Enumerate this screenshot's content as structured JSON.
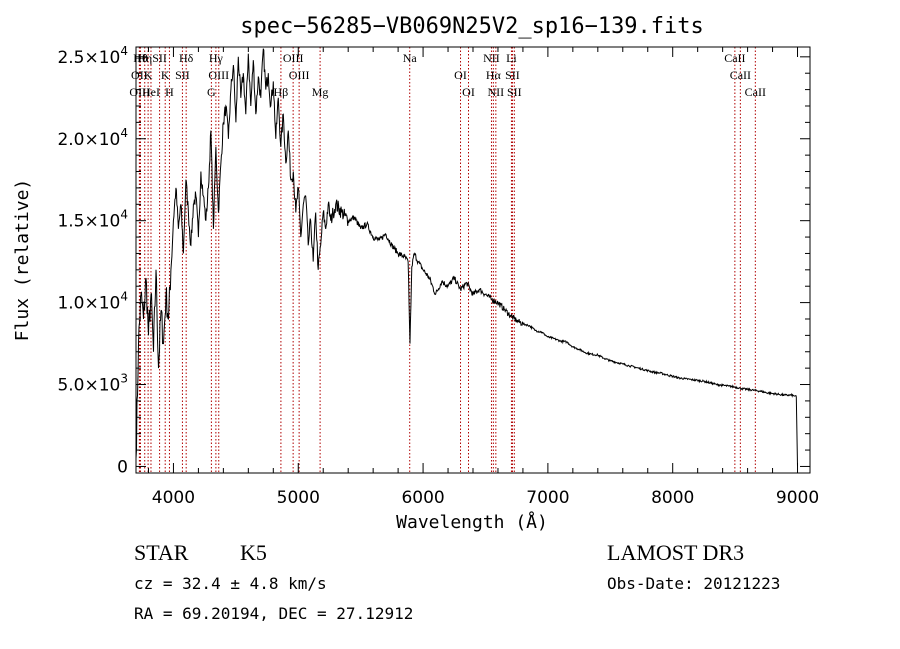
{
  "chart_data": {
    "type": "line",
    "title": "spec−56285−VB069N25V2_sp16−139.fits",
    "xlabel": "Wavelength (Å)",
    "ylabel": "Flux (relative)",
    "xlim": [
      3700,
      9100
    ],
    "ylim": [
      -400,
      25600
    ],
    "x_ticks": [
      {
        "value": 4000,
        "label": "4000"
      },
      {
        "value": 5000,
        "label": "5000"
      },
      {
        "value": 6000,
        "label": "6000"
      },
      {
        "value": 7000,
        "label": "7000"
      },
      {
        "value": 8000,
        "label": "8000"
      },
      {
        "value": 9000,
        "label": "9000"
      }
    ],
    "y_ticks": [
      {
        "value": 0,
        "mantissa": "0",
        "exponent": ""
      },
      {
        "value": 5000,
        "mantissa": "5.0×10",
        "exponent": "3"
      },
      {
        "value": 10000,
        "mantissa": "1.0×10",
        "exponent": "4"
      },
      {
        "value": 15000,
        "mantissa": "1.5×10",
        "exponent": "4"
      },
      {
        "value": 20000,
        "mantissa": "2.0×10",
        "exponent": "4"
      },
      {
        "value": 25000,
        "mantissa": "2.5×10",
        "exponent": "4"
      }
    ],
    "series": [
      {
        "name": "flux",
        "x": [
          3700,
          3720,
          3740,
          3760,
          3780,
          3800,
          3820,
          3840,
          3860,
          3880,
          3900,
          3920,
          3940,
          3960,
          3980,
          4000,
          4020,
          4040,
          4060,
          4080,
          4100,
          4120,
          4140,
          4160,
          4180,
          4200,
          4220,
          4240,
          4260,
          4280,
          4300,
          4320,
          4340,
          4360,
          4380,
          4400,
          4420,
          4440,
          4460,
          4480,
          4500,
          4520,
          4540,
          4560,
          4580,
          4600,
          4620,
          4640,
          4660,
          4680,
          4700,
          4720,
          4740,
          4760,
          4780,
          4800,
          4820,
          4840,
          4860,
          4880,
          4900,
          4920,
          4940,
          4960,
          4980,
          5000,
          5020,
          5040,
          5060,
          5080,
          5100,
          5120,
          5140,
          5160,
          5180,
          5200,
          5220,
          5240,
          5260,
          5280,
          5300,
          5350,
          5400,
          5450,
          5500,
          5550,
          5600,
          5650,
          5700,
          5750,
          5800,
          5850,
          5880,
          5895,
          5910,
          5930,
          5960,
          6000,
          6050,
          6100,
          6150,
          6200,
          6250,
          6300,
          6350,
          6400,
          6450,
          6500,
          6550,
          6600,
          6650,
          6700,
          6750,
          6800,
          6850,
          6900,
          6950,
          7000,
          7050,
          7100,
          7150,
          7200,
          7250,
          7300,
          7350,
          7400,
          7450,
          7500,
          7550,
          7600,
          7650,
          7700,
          7750,
          7800,
          7850,
          7900,
          7950,
          8000,
          8050,
          8100,
          8150,
          8200,
          8250,
          8300,
          8350,
          8400,
          8450,
          8500,
          8550,
          8600,
          8650,
          8700,
          8750,
          8800,
          8850,
          8900,
          8950,
          8980,
          8990,
          9000
        ],
        "y": [
          500,
          7500,
          10500,
          9000,
          11500,
          8000,
          10500,
          7000,
          12000,
          6000,
          9500,
          7500,
          10500,
          9000,
          12000,
          15000,
          17000,
          14500,
          16000,
          13000,
          17500,
          15500,
          13500,
          16000,
          16500,
          14000,
          18000,
          16500,
          15000,
          17000,
          20500,
          14500,
          19500,
          15500,
          18500,
          21000,
          22000,
          20000,
          23000,
          24500,
          21000,
          25000,
          22500,
          24000,
          21500,
          25200,
          22000,
          24800,
          21500,
          23800,
          22500,
          25500,
          23000,
          24000,
          22000,
          23500,
          20000,
          22500,
          19500,
          21500,
          18500,
          20500,
          17500,
          18000,
          15500,
          17000,
          14000,
          16000,
          16500,
          13500,
          15000,
          12500,
          15500,
          12000,
          13500,
          15500,
          14500,
          16000,
          15000,
          15500,
          16000,
          15500,
          15000,
          15200,
          14500,
          14800,
          14000,
          13800,
          14200,
          13500,
          13000,
          12800,
          12500,
          7500,
          12200,
          13000,
          12500,
          12000,
          11500,
          10500,
          11300,
          11000,
          11500,
          10800,
          11200,
          10500,
          10800,
          10500,
          10200,
          10000,
          9600,
          9200,
          8900,
          8700,
          8600,
          8300,
          8200,
          7900,
          7800,
          7650,
          7600,
          7300,
          7150,
          6950,
          6850,
          6800,
          6600,
          6450,
          6350,
          6250,
          6150,
          6050,
          5950,
          5850,
          5750,
          5700,
          5600,
          5500,
          5400,
          5350,
          5300,
          5250,
          5200,
          5100,
          5000,
          4950,
          4900,
          4850,
          4750,
          4700,
          4650,
          4600,
          4500,
          4450,
          4400,
          4350,
          4350,
          4300,
          4250,
          0
        ]
      }
    ],
    "line_ids": [
      {
        "wave": 3736,
        "label": "Hθ"
      },
      {
        "wave": 3727,
        "label": "OII"
      },
      {
        "wave": 3730,
        "label": "OIII"
      },
      {
        "wave": 3770,
        "label": "Hη"
      },
      {
        "wave": 3797,
        "label": "K"
      },
      {
        "wave": 3820,
        "label": "HeI"
      },
      {
        "wave": 3889,
        "label": "SII"
      },
      {
        "wave": 3934,
        "label": "K"
      },
      {
        "wave": 3968,
        "label": "H"
      },
      {
        "wave": 4102,
        "label": "Hδ"
      },
      {
        "wave": 4072,
        "label": "SII"
      },
      {
        "wave": 4304,
        "label": "G"
      },
      {
        "wave": 4340,
        "label": "Hγ"
      },
      {
        "wave": 4363,
        "label": "OIII"
      },
      {
        "wave": 4861,
        "label": "Hβ"
      },
      {
        "wave": 4959,
        "label": "OIII"
      },
      {
        "wave": 5007,
        "label": "OIII"
      },
      {
        "wave": 5175,
        "label": "Mg"
      },
      {
        "wave": 5893,
        "label": "Na"
      },
      {
        "wave": 6300,
        "label": "OI"
      },
      {
        "wave": 6364,
        "label": "OI"
      },
      {
        "wave": 6548,
        "label": "NII"
      },
      {
        "wave": 6563,
        "label": "Hα"
      },
      {
        "wave": 6583,
        "label": "NII"
      },
      {
        "wave": 6708,
        "label": "Li"
      },
      {
        "wave": 6716,
        "label": "SII"
      },
      {
        "wave": 6731,
        "label": "SII"
      },
      {
        "wave": 8498,
        "label": "CaII"
      },
      {
        "wave": 8542,
        "label": "CaII"
      },
      {
        "wave": 8662,
        "label": "CaII"
      }
    ],
    "line_colors": {
      "spectrum": "#000000",
      "markers": "#b00000"
    }
  },
  "info": {
    "object_class": "STAR",
    "subclass": "K5",
    "redshift_text": "cz =  32.4 ± 4.8 km/s",
    "coords_text": "RA =  69.20194, DEC =  27.12912",
    "survey": "LAMOST DR3",
    "obs_date": "Obs-Date: 20121223"
  }
}
